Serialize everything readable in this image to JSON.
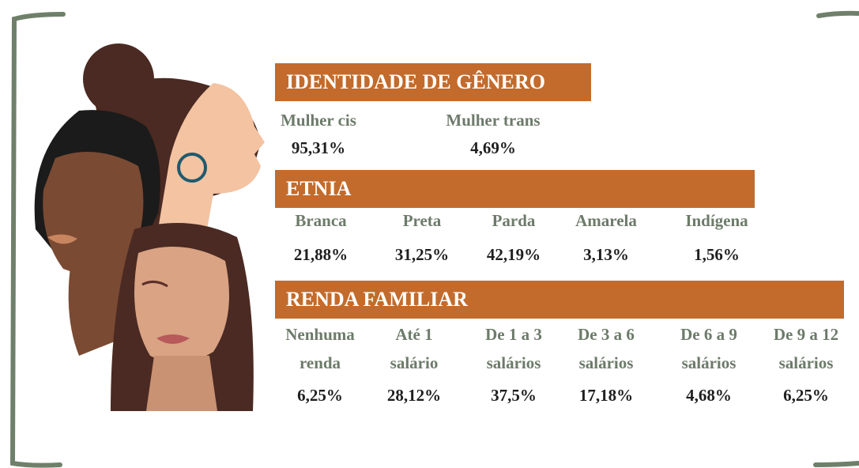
{
  "sections": [
    {
      "title": "IDENTIDADE DE GÊNERO",
      "items": [
        {
          "label": [
            "Mulher cis"
          ],
          "value": "95,31%"
        },
        {
          "label": [
            "Mulher trans"
          ],
          "value": "4,69%"
        }
      ]
    },
    {
      "title": "ETNIA",
      "items": [
        {
          "label": [
            "Branca"
          ],
          "value": "21,88%"
        },
        {
          "label": [
            "Preta"
          ],
          "value": "31,25%"
        },
        {
          "label": [
            "Parda"
          ],
          "value": "42,19%"
        },
        {
          "label": [
            "Amarela"
          ],
          "value": "3,13%"
        },
        {
          "label": [
            "Indígena"
          ],
          "value": "1,56%"
        }
      ]
    },
    {
      "title": "RENDA FAMILIAR",
      "items": [
        {
          "label": [
            "Nenhuma",
            "renda"
          ],
          "value": "6,25%"
        },
        {
          "label": [
            "Até 1",
            "salário"
          ],
          "value": "28,12%"
        },
        {
          "label": [
            "De 1 a 3",
            "salários"
          ],
          "value": "37,5%"
        },
        {
          "label": [
            "De 3 a 6",
            "salários"
          ],
          "value": "17,18%"
        },
        {
          "label": [
            "De 6 a 9",
            "salários"
          ],
          "value": "4,68%"
        },
        {
          "label": [
            "De 9 a 12",
            "salários"
          ],
          "value": "6,25%"
        }
      ]
    }
  ]
}
